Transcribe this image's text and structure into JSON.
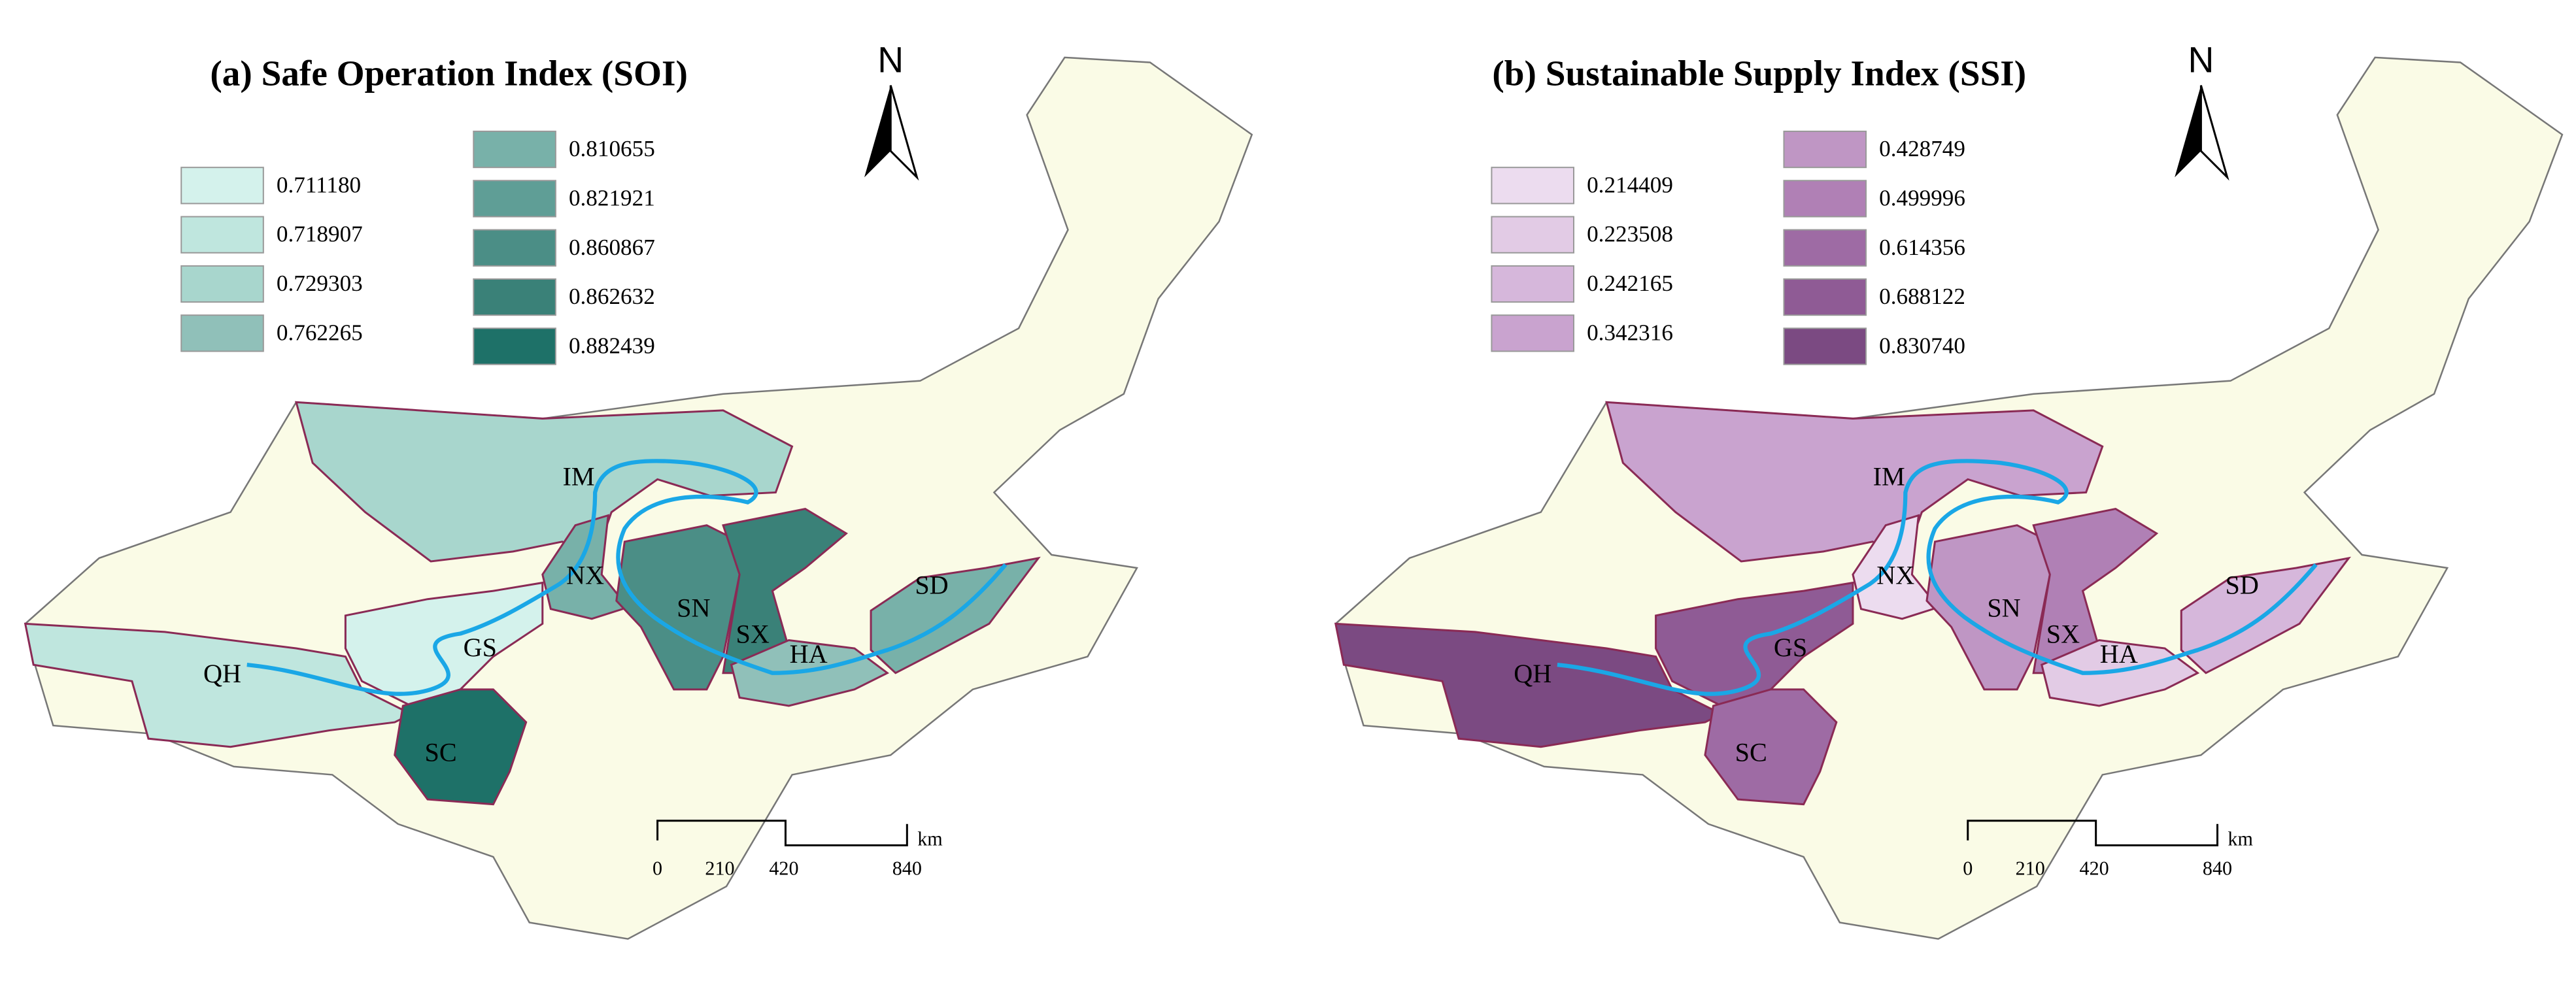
{
  "panels": [
    {
      "title": "(a) Safe Operation Index (SOI)",
      "legend": [
        {
          "label": "0.711180",
          "color": "#d4f2ec"
        },
        {
          "label": "0.718907",
          "color": "#bfe6de"
        },
        {
          "label": "0.729303",
          "color": "#a8d6cd"
        },
        {
          "label": "0.762265",
          "color": "#90c0b9"
        },
        {
          "label": "0.810655",
          "color": "#78b1a9"
        },
        {
          "label": "0.821921",
          "color": "#5f9e96"
        },
        {
          "label": "0.860867",
          "color": "#4b8e86"
        },
        {
          "label": "0.862632",
          "color": "#3a8178"
        },
        {
          "label": "0.882439",
          "color": "#1e7168"
        }
      ],
      "regions": [
        {
          "label": "IM",
          "color": "#a8d6cd"
        },
        {
          "label": "NX",
          "color": "#78b1a9"
        },
        {
          "label": "SN",
          "color": "#4b8e86"
        },
        {
          "label": "SX",
          "color": "#3a8178"
        },
        {
          "label": "HA",
          "color": "#90c0b9"
        },
        {
          "label": "SD",
          "color": "#78b1a9"
        },
        {
          "label": "GS",
          "color": "#d4f2ec"
        },
        {
          "label": "QH",
          "color": "#bfe6de"
        },
        {
          "label": "SC",
          "color": "#1e7168"
        }
      ],
      "north": "N",
      "scale": [
        "0",
        "210",
        "420",
        "840"
      ],
      "scale_unit": "km"
    },
    {
      "title": "(b) Sustainable Supply Index (SSI)",
      "legend": [
        {
          "label": "0.214409",
          "color": "#ecdcef"
        },
        {
          "label": "0.223508",
          "color": "#e2cbe5"
        },
        {
          "label": "0.242165",
          "color": "#d6b7db"
        },
        {
          "label": "0.342316",
          "color": "#c9a3cf"
        },
        {
          "label": "0.428749",
          "color": "#bf96c4"
        },
        {
          "label": "0.499996",
          "color": "#b080b5"
        },
        {
          "label": "0.614356",
          "color": "#9e6ba4"
        },
        {
          "label": "0.688122",
          "color": "#8f5b95"
        },
        {
          "label": "0.830740",
          "color": "#7b4a82"
        }
      ],
      "regions": [
        {
          "label": "IM",
          "color": "#c9a3cf"
        },
        {
          "label": "NX",
          "color": "#ecdcef"
        },
        {
          "label": "SN",
          "color": "#bf96c4"
        },
        {
          "label": "SX",
          "color": "#b080b5"
        },
        {
          "label": "HA",
          "color": "#e2cbe5"
        },
        {
          "label": "SD",
          "color": "#d6b7db"
        },
        {
          "label": "GS",
          "color": "#8f5b95"
        },
        {
          "label": "QH",
          "color": "#7b4a82"
        },
        {
          "label": "SC",
          "color": "#9e6ba4"
        }
      ],
      "north": "N",
      "scale": [
        "0",
        "210",
        "420",
        "840"
      ],
      "scale_unit": "km"
    }
  ]
}
